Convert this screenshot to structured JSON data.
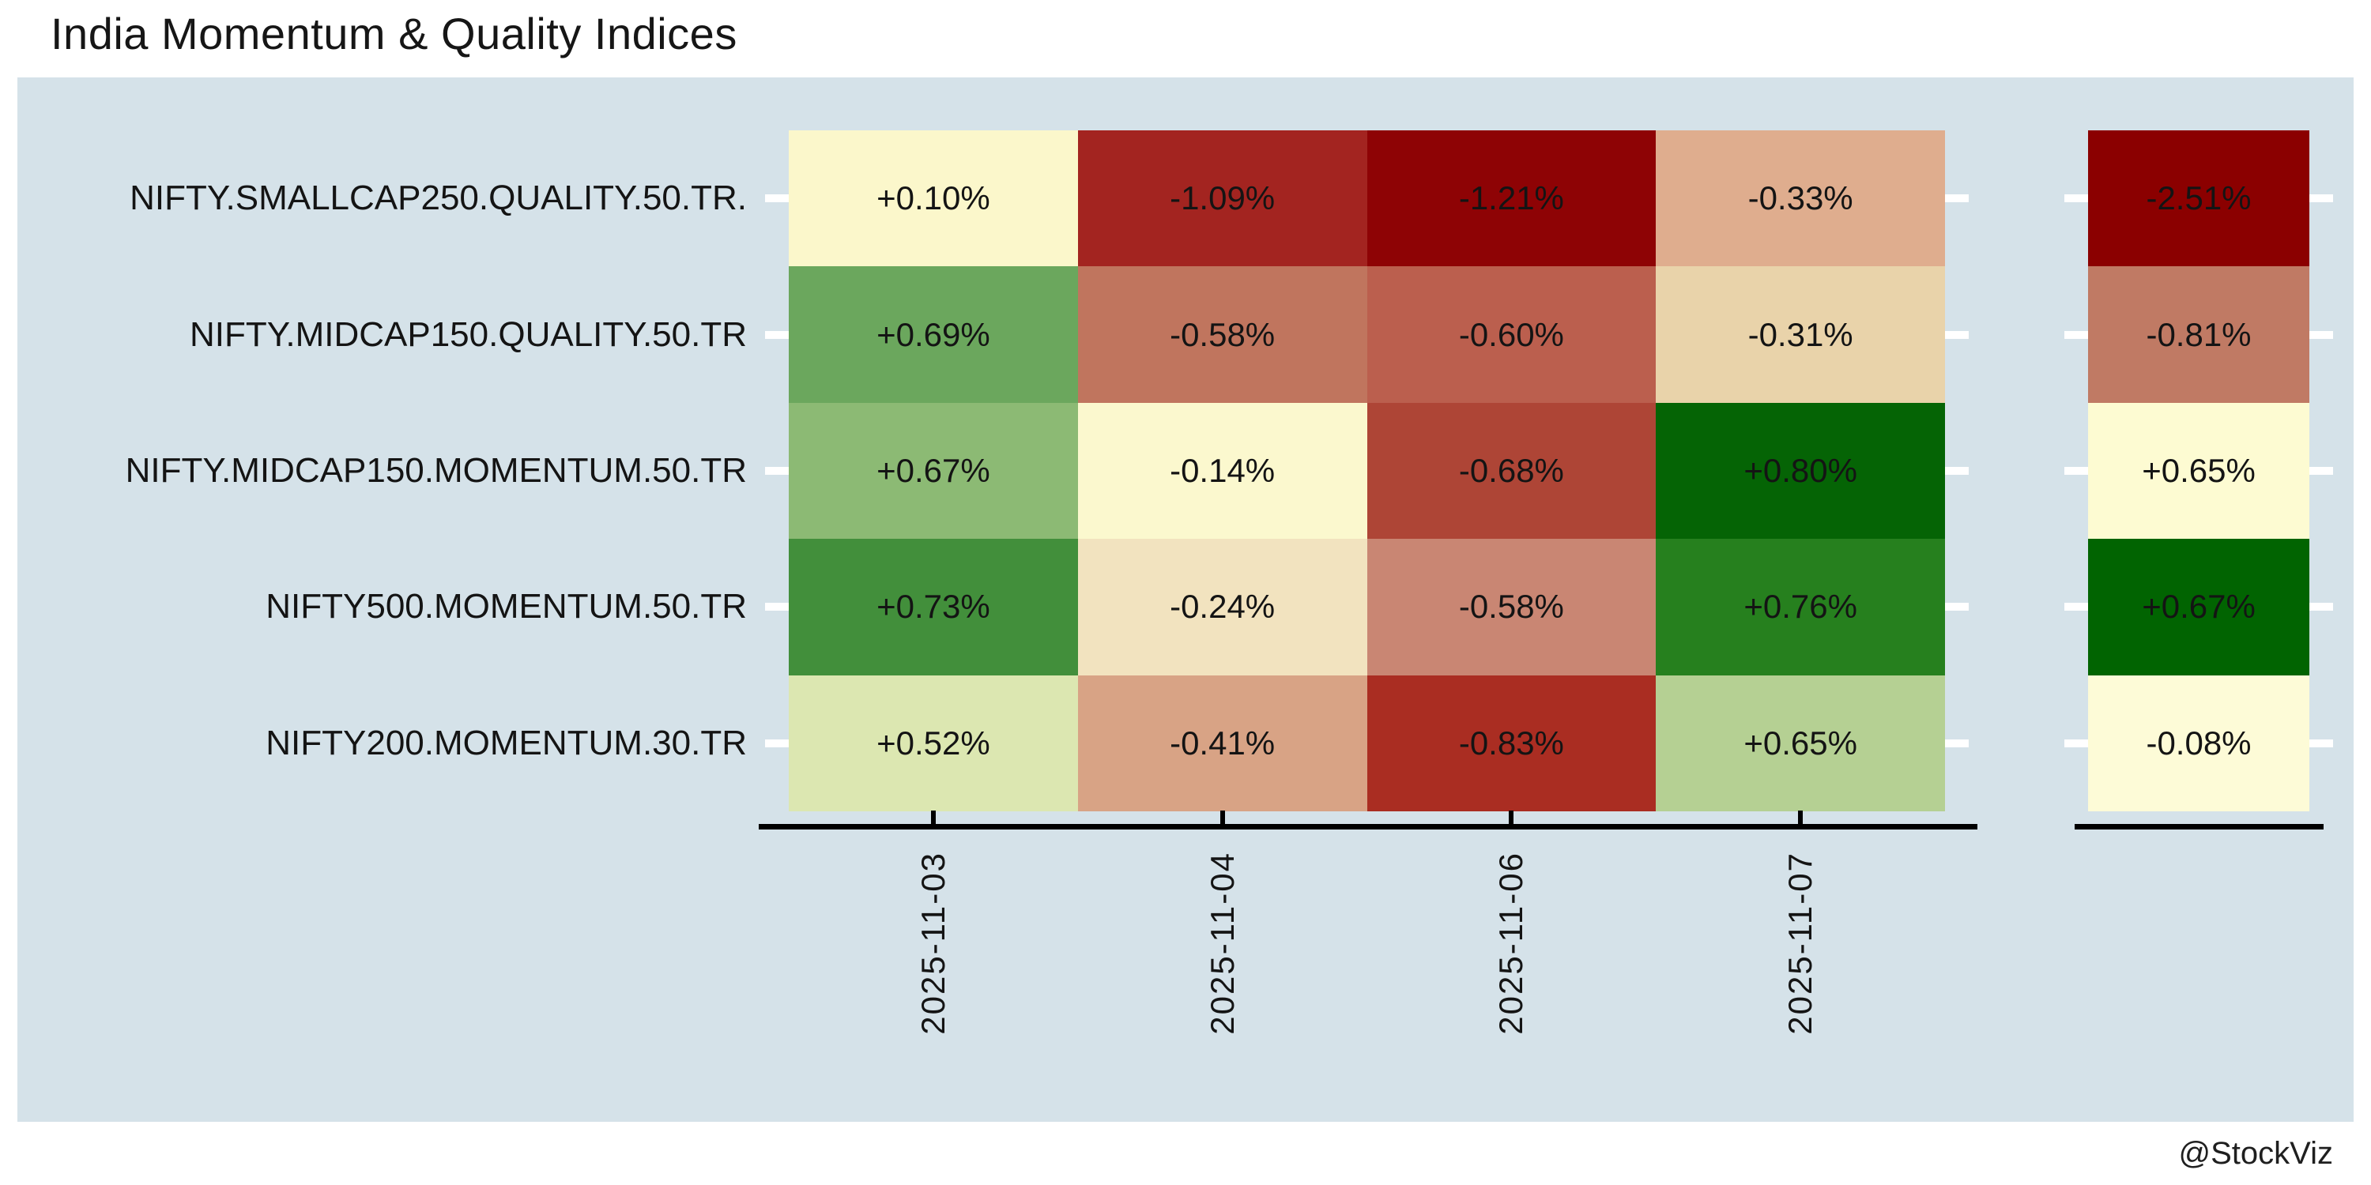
{
  "title": "India Momentum & Quality Indices",
  "watermark": "@StockViz",
  "colors": {
    "page_bg": "#ffffff",
    "panel_bg": "#d5e2e9",
    "axis": "#000000",
    "tick_dash": "#ffffff",
    "cell_text": "#141414"
  },
  "chart_data": {
    "type": "heatmap",
    "title": "India Momentum & Quality Indices",
    "y_labels": [
      "NIFTY.SMALLCAP250.QUALITY.50.TR.",
      "NIFTY.MIDCAP150.QUALITY.50.TR",
      "NIFTY.MIDCAP150.MOMENTUM.50.TR",
      "NIFTY500.MOMENTUM.50.TR",
      "NIFTY200.MOMENTUM.30.TR"
    ],
    "x_labels": [
      "2025-11-03",
      "2025-11-04",
      "2025-11-06",
      "2025-11-07"
    ],
    "values": [
      [
        0.1,
        -1.09,
        -1.21,
        -0.33
      ],
      [
        0.69,
        -0.58,
        -0.6,
        -0.31
      ],
      [
        0.67,
        -0.14,
        -0.68,
        0.8
      ],
      [
        0.73,
        -0.24,
        -0.58,
        0.76
      ],
      [
        0.52,
        -0.41,
        -0.83,
        0.65
      ]
    ],
    "display": [
      [
        "+0.10%",
        "-1.09%",
        "-1.21%",
        "-0.33%"
      ],
      [
        "+0.69%",
        "-0.58%",
        "-0.60%",
        "-0.31%"
      ],
      [
        "+0.67%",
        "-0.14%",
        "-0.68%",
        "+0.80%"
      ],
      [
        "+0.73%",
        "-0.24%",
        "-0.58%",
        "+0.76%"
      ],
      [
        "+0.52%",
        "-0.41%",
        "-0.83%",
        "+0.65%"
      ]
    ],
    "cell_colors": [
      [
        "#fbf7cb",
        "#a32420",
        "#8e0305",
        "#dfad8e"
      ],
      [
        "#6ba75d",
        "#c0755e",
        "#bb5f4e",
        "#e9d3aa"
      ],
      [
        "#8cba74",
        "#fbf8ce",
        "#ae4536",
        "#056405"
      ],
      [
        "#428f3b",
        "#f2e3bf",
        "#c98673",
        "#26801e"
      ],
      [
        "#dce7b1",
        "#d8a385",
        "#aa2d22",
        "#b5d093"
      ]
    ],
    "totals": {
      "values": [
        -2.51,
        -0.81,
        0.65,
        0.67,
        -0.08
      ],
      "display": [
        "-2.51%",
        "-0.81%",
        "+0.65%",
        "+0.67%",
        "-0.08%"
      ],
      "colors": [
        "#8b0000",
        "#c07a64",
        "#fdfbd2",
        "#016401",
        "#fdfbd7"
      ]
    },
    "legend": "none",
    "grid": "off",
    "colormap": "RdYlGn"
  }
}
